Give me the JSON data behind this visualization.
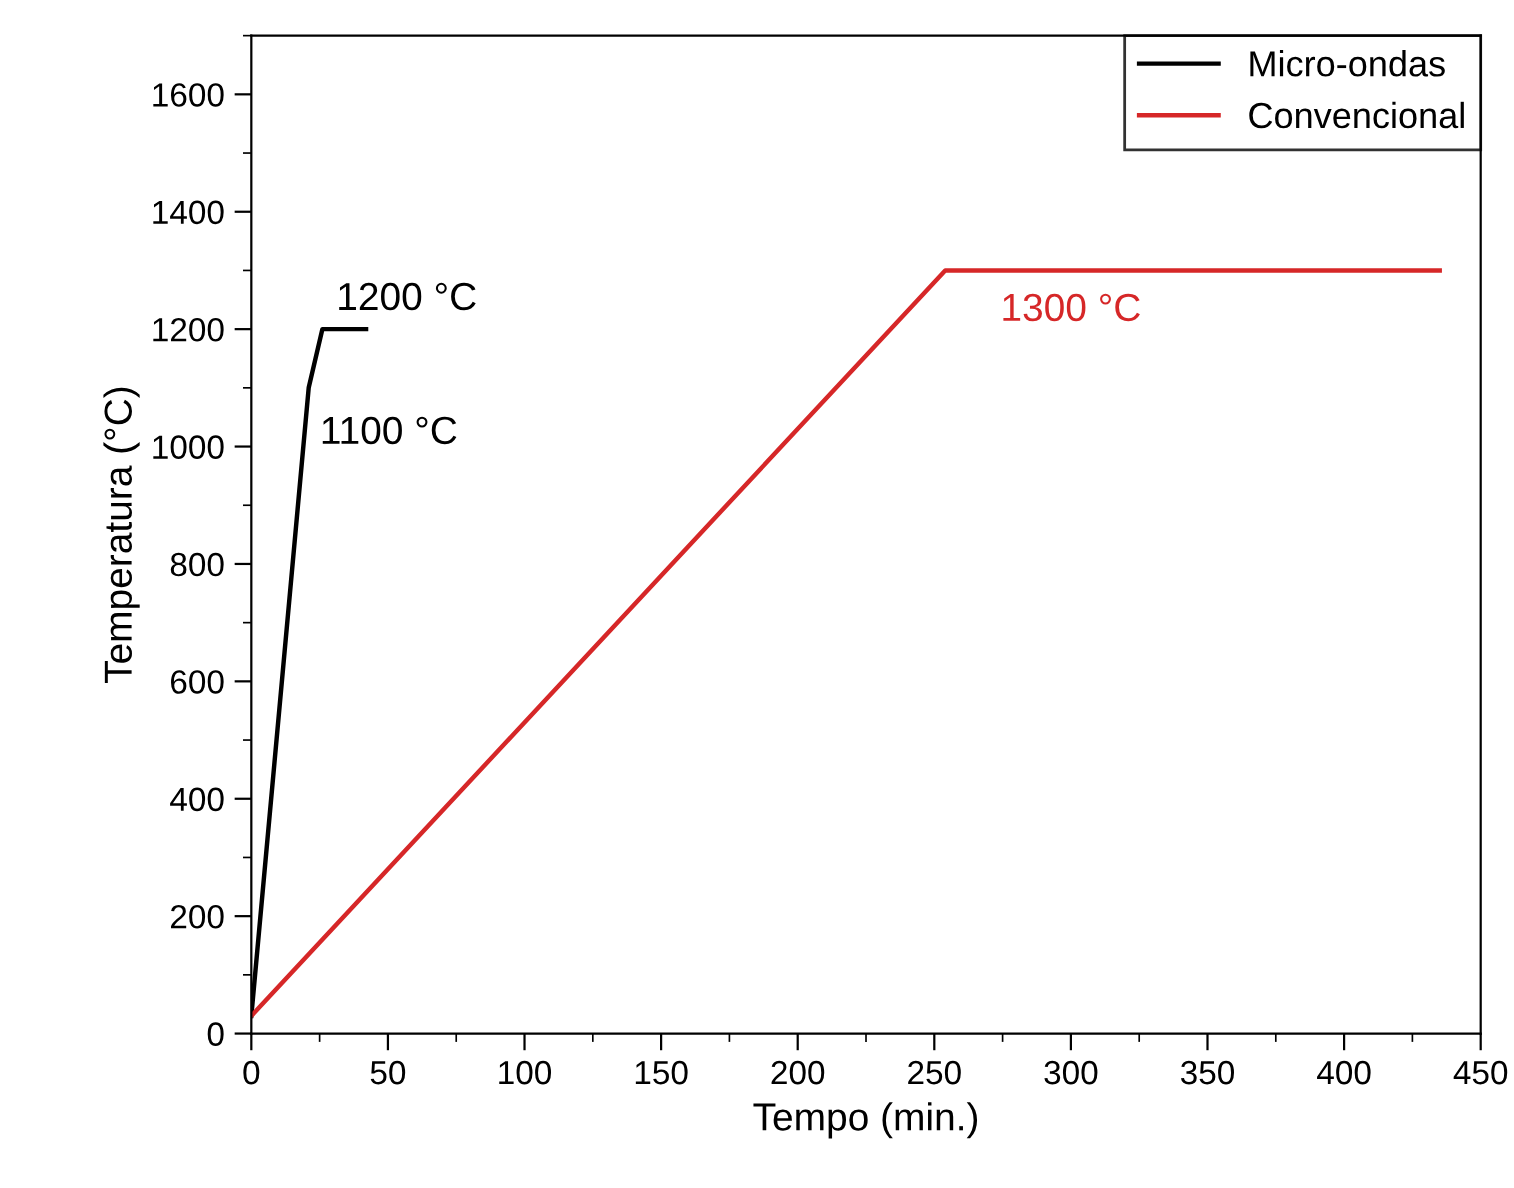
{
  "chart_data": {
    "type": "line",
    "xlabel": "Tempo (min.)",
    "ylabel": "Temperatura (°C)",
    "series": [
      {
        "name": "Micro-ondas",
        "color": "#000000",
        "x": [
          0,
          21,
          26,
          42
        ],
        "values": [
          30,
          1100,
          1200,
          1200
        ]
      },
      {
        "name": "Convencional",
        "color": "#d62728",
        "x": [
          0,
          254,
          435
        ],
        "values": [
          30,
          1300,
          1300
        ]
      }
    ],
    "xlim": [
      0,
      450
    ],
    "xticks": [
      0,
      50,
      100,
      150,
      200,
      250,
      300,
      350,
      400,
      450
    ],
    "ylim": [
      0,
      1700
    ],
    "yticks": [
      0,
      200,
      400,
      600,
      800,
      1000,
      1200,
      1400,
      1600
    ],
    "annotations": [
      {
        "text": "1200 °C",
        "x": 26,
        "y": 1200
      },
      {
        "text": "1100 °C",
        "x": 21,
        "y": 1100
      },
      {
        "text": "1300 °C",
        "x": 300,
        "y": 1300
      }
    ],
    "legend": "top right",
    "grid": false,
    "marker": "none",
    "line_style": "solid"
  }
}
